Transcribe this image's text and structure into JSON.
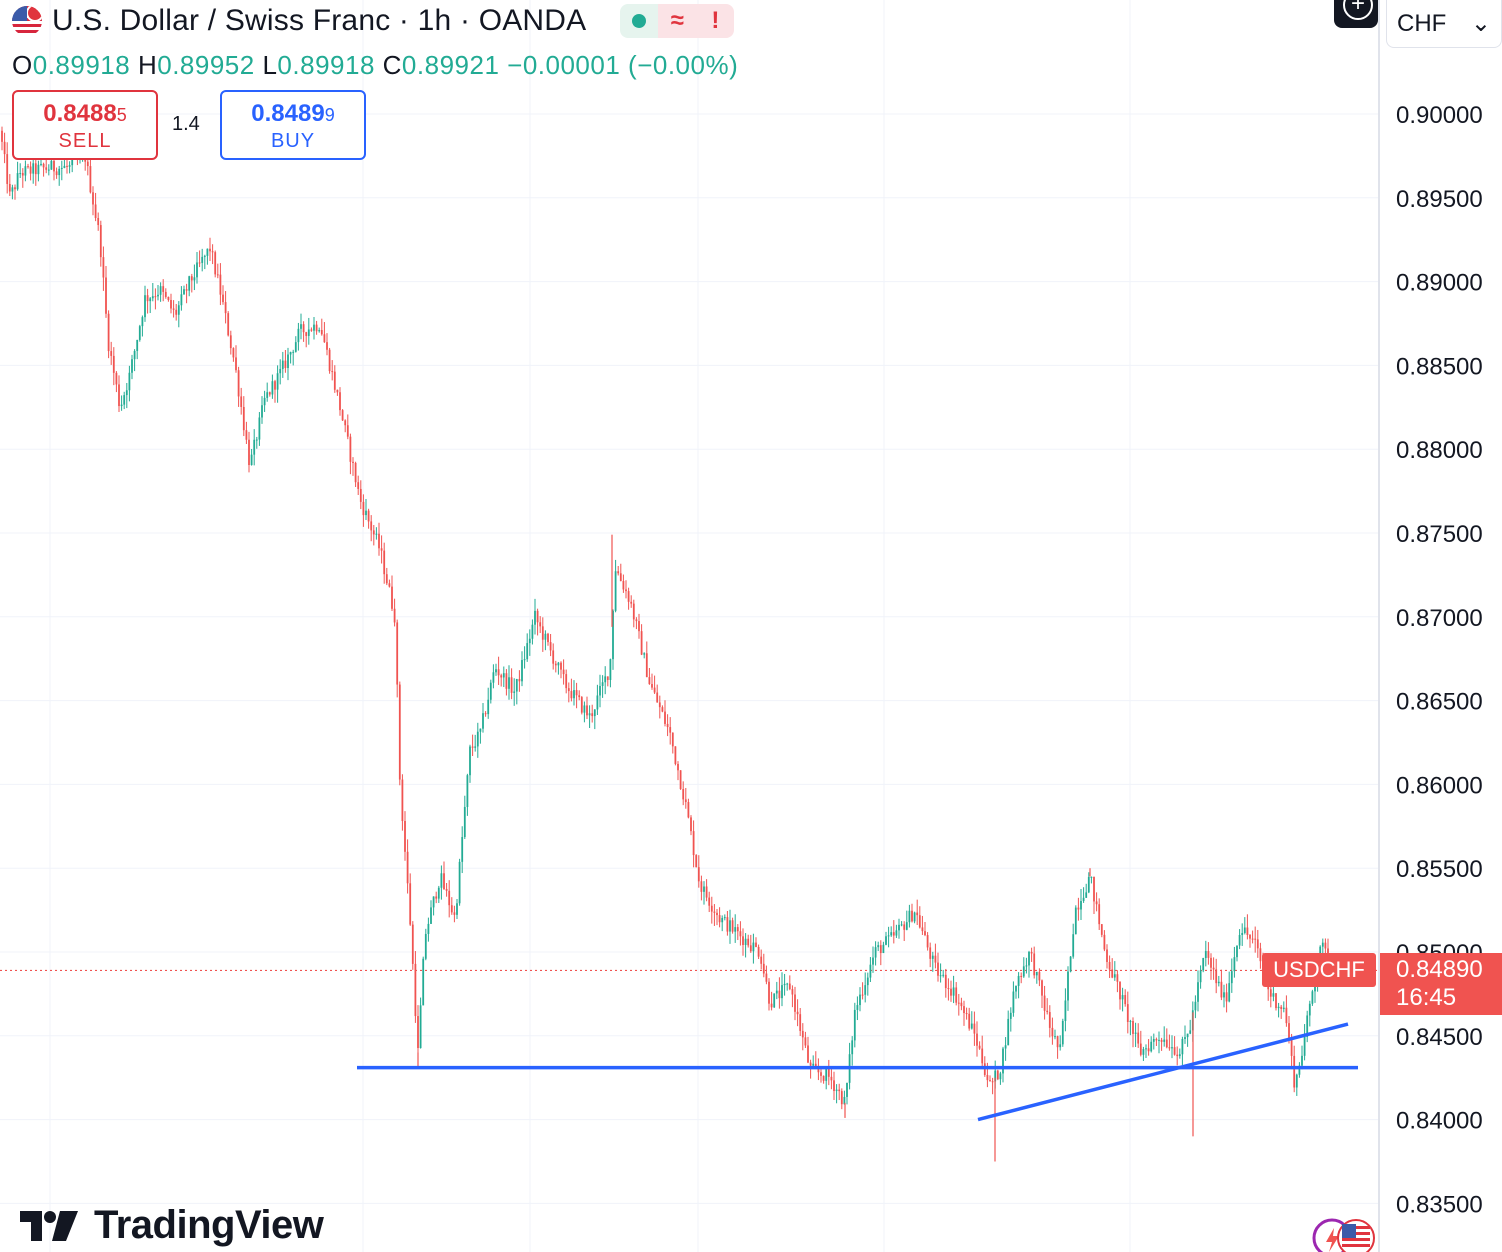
{
  "header": {
    "title": "U.S. Dollar / Swiss Franc · 1h · OANDA",
    "status_wave": "≈",
    "status_warning": "!"
  },
  "ohlc": {
    "o_label": "O",
    "o": "0.89918",
    "h_label": "H",
    "h": "0.89952",
    "l_label": "L",
    "l": "0.89918",
    "c_label": "C",
    "c": "0.89921",
    "change": "−0.00001 (−0.00%)"
  },
  "trade": {
    "sell_price": "0.8488",
    "sell_pip": "5",
    "sell_label": "SELL",
    "spread": "1.4",
    "buy_price": "0.8489",
    "buy_pip": "9",
    "buy_label": "BUY"
  },
  "currency_selector": {
    "value": "CHF",
    "chevron": "⌄"
  },
  "last_price": {
    "symbol": "USDCHF",
    "price": "0.84890",
    "countdown": "16:45"
  },
  "branding": {
    "logo_text": "TradingView"
  },
  "colors": {
    "up": "#22ab94",
    "down": "#f05350",
    "drawing": "#2962ff",
    "grid": "#f0f3fa",
    "axis_text": "#131722"
  },
  "chart_data": {
    "type": "candlestick",
    "symbol": "USDCHF",
    "timeframe": "1h",
    "ylim": [
      0.833,
      0.9055
    ],
    "yticks": [
      "0.90000",
      "0.89500",
      "0.89000",
      "0.88500",
      "0.88000",
      "0.87500",
      "0.87000",
      "0.86500",
      "0.86000",
      "0.85500",
      "0.85000",
      "0.84500",
      "0.84000",
      "0.83500"
    ],
    "last_price": 0.8489,
    "x_index_range": [
      0,
      1380
    ],
    "price_path": [
      [
        0,
        0.899
      ],
      [
        10,
        0.895
      ],
      [
        20,
        0.8965
      ],
      [
        50,
        0.8968
      ],
      [
        70,
        0.8968
      ],
      [
        85,
        0.8975
      ],
      [
        100,
        0.8925
      ],
      [
        108,
        0.8865
      ],
      [
        120,
        0.8825
      ],
      [
        130,
        0.8845
      ],
      [
        145,
        0.889
      ],
      [
        160,
        0.8895
      ],
      [
        175,
        0.888
      ],
      [
        190,
        0.89
      ],
      [
        210,
        0.892
      ],
      [
        220,
        0.8895
      ],
      [
        235,
        0.885
      ],
      [
        250,
        0.879
      ],
      [
        265,
        0.883
      ],
      [
        280,
        0.8845
      ],
      [
        300,
        0.887
      ],
      [
        320,
        0.8875
      ],
      [
        340,
        0.8825
      ],
      [
        360,
        0.877
      ],
      [
        380,
        0.874
      ],
      [
        395,
        0.87
      ],
      [
        400,
        0.86
      ],
      [
        410,
        0.852
      ],
      [
        418,
        0.844
      ],
      [
        425,
        0.851
      ],
      [
        440,
        0.8545
      ],
      [
        455,
        0.852
      ],
      [
        470,
        0.862
      ],
      [
        480,
        0.863
      ],
      [
        495,
        0.867
      ],
      [
        515,
        0.8655
      ],
      [
        535,
        0.87
      ],
      [
        550,
        0.868
      ],
      [
        565,
        0.866
      ],
      [
        590,
        0.864
      ],
      [
        610,
        0.867
      ],
      [
        615,
        0.873
      ],
      [
        630,
        0.871
      ],
      [
        650,
        0.866
      ],
      [
        670,
        0.863
      ],
      [
        685,
        0.859
      ],
      [
        700,
        0.854
      ],
      [
        720,
        0.852
      ],
      [
        740,
        0.851
      ],
      [
        760,
        0.85
      ],
      [
        770,
        0.847
      ],
      [
        790,
        0.848
      ],
      [
        810,
        0.843
      ],
      [
        830,
        0.8425
      ],
      [
        845,
        0.841
      ],
      [
        855,
        0.8465
      ],
      [
        875,
        0.85
      ],
      [
        895,
        0.851
      ],
      [
        915,
        0.8525
      ],
      [
        935,
        0.849
      ],
      [
        955,
        0.8475
      ],
      [
        975,
        0.845
      ],
      [
        990,
        0.842
      ],
      [
        1000,
        0.843
      ],
      [
        1015,
        0.848
      ],
      [
        1030,
        0.85
      ],
      [
        1050,
        0.8455
      ],
      [
        1060,
        0.844
      ],
      [
        1075,
        0.8525
      ],
      [
        1090,
        0.8545
      ],
      [
        1105,
        0.85
      ],
      [
        1120,
        0.8475
      ],
      [
        1140,
        0.844
      ],
      [
        1160,
        0.845
      ],
      [
        1180,
        0.844
      ],
      [
        1190,
        0.8455
      ],
      [
        1205,
        0.85
      ],
      [
        1225,
        0.847
      ],
      [
        1240,
        0.8515
      ],
      [
        1255,
        0.8505
      ],
      [
        1270,
        0.8475
      ],
      [
        1285,
        0.8465
      ],
      [
        1295,
        0.842
      ],
      [
        1305,
        0.845
      ],
      [
        1320,
        0.8505
      ],
      [
        1333,
        0.849
      ]
    ],
    "extremes": [
      {
        "x": 418,
        "low": 0.8431
      },
      {
        "x": 612,
        "high": 0.8749
      },
      {
        "x": 845,
        "low": 0.8401
      },
      {
        "x": 995,
        "low": 0.8375
      },
      {
        "x": 1090,
        "high": 0.855
      },
      {
        "x": 1193,
        "low": 0.839
      }
    ],
    "drawings": [
      {
        "type": "horizontal_segment",
        "price": 0.8431,
        "x_from": 357,
        "x_to": 1358,
        "color": "#2962ff"
      },
      {
        "type": "trendline",
        "from": {
          "x": 978,
          "price": 0.84
        },
        "to": {
          "x": 1348,
          "price": 0.8457
        },
        "color": "#2962ff"
      }
    ]
  }
}
